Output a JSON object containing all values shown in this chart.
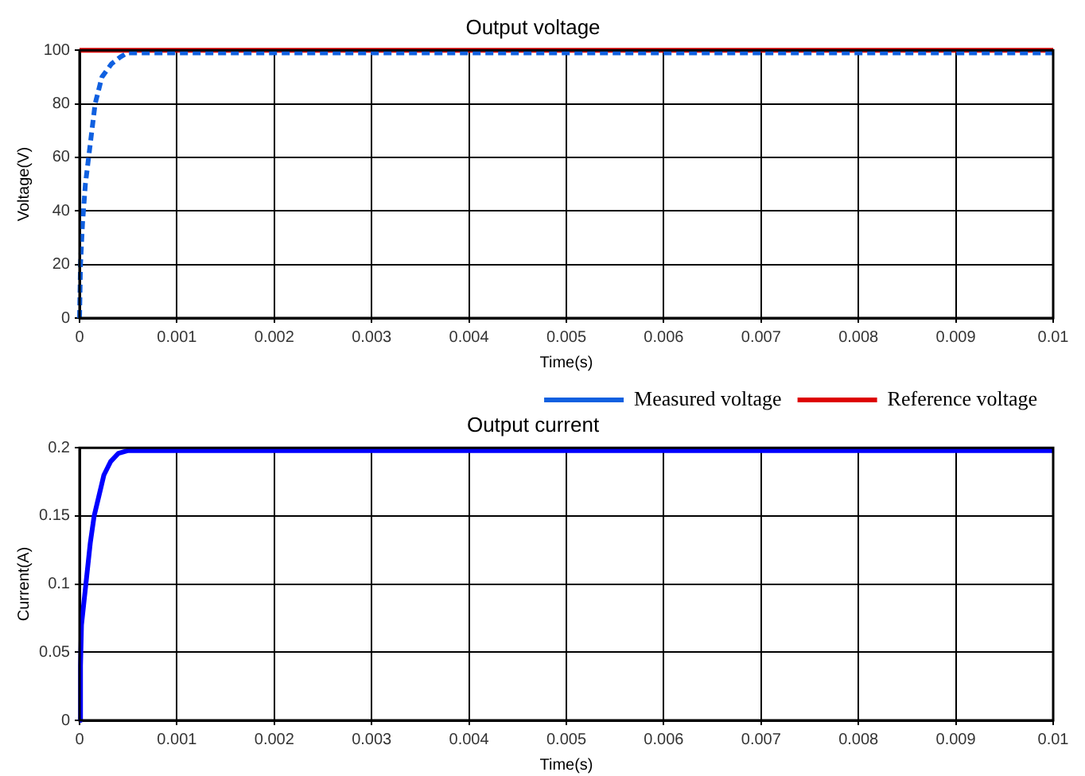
{
  "chart_data": [
    {
      "type": "line",
      "title": "Output voltage",
      "xlabel": "Time(s)",
      "ylabel": "Voltage(V)",
      "xlim": [
        0,
        0.01
      ],
      "xticks": [
        0,
        0.001,
        0.002,
        0.003,
        0.004,
        0.005,
        0.006,
        0.007,
        0.008,
        0.009,
        0.01
      ],
      "ylim": [
        0,
        100
      ],
      "yticks": [
        0,
        20,
        40,
        60,
        80,
        100
      ],
      "grid": true,
      "legend": "bottom right",
      "marker": "none",
      "series": [
        {
          "name": "Measured voltage",
          "color": "#1060e0",
          "line_style": "dashed",
          "x": [
            0,
            1e-05,
            3e-05,
            6e-05,
            0.0001,
            0.00016,
            0.00023,
            0.00033,
            0.00042,
            0.00049,
            0.00055,
            0.01
          ],
          "values": [
            0,
            20,
            35,
            50,
            62,
            80,
            90,
            95,
            97.5,
            99,
            99,
            99
          ]
        },
        {
          "name": "Reference voltage",
          "color": "#dd0000",
          "line_style": "solid",
          "x": [
            0,
            0.01
          ],
          "values": [
            100,
            100
          ]
        }
      ]
    },
    {
      "type": "line",
      "title": "Output current",
      "xlabel": "Time(s)",
      "ylabel": "Current(A)",
      "xlim": [
        0,
        0.01
      ],
      "xticks": [
        0,
        0.001,
        0.002,
        0.003,
        0.004,
        0.005,
        0.006,
        0.007,
        0.008,
        0.009,
        0.01
      ],
      "ylim": [
        0,
        0.2
      ],
      "yticks": [
        0,
        0.05,
        0.1,
        0.15,
        0.2
      ],
      "grid": true,
      "legend": false,
      "marker": "none",
      "series": [
        {
          "color": "#0000ff",
          "line_style": "solid",
          "x": [
            0,
            1e-05,
            2e-05,
            5e-05,
            8e-05,
            0.00011,
            0.00015,
            0.0002,
            0.00025,
            0.00032,
            0.0004,
            0.0005,
            0.01
          ],
          "values": [
            0,
            0.04,
            0.07,
            0.09,
            0.11,
            0.13,
            0.15,
            0.165,
            0.18,
            0.19,
            0.196,
            0.198,
            0.198
          ]
        }
      ]
    }
  ]
}
